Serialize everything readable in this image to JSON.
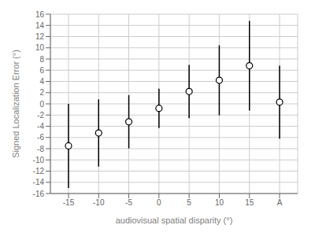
{
  "chart_data": {
    "type": "scatter",
    "xlabel": "audiovisual spatial disparity (°)",
    "ylabel": "Signed Localization Error (°)",
    "xlim": [
      -18,
      23
    ],
    "xticks": [
      -15,
      -10,
      -5,
      0,
      5,
      10,
      15,
      {
        "value": 20,
        "label": "A"
      }
    ],
    "ylim": [
      -16,
      16
    ],
    "yticks": [
      -16,
      -14,
      -12,
      -10,
      -8,
      -6,
      -4,
      -2,
      0,
      2,
      4,
      6,
      8,
      10,
      12,
      14,
      16
    ],
    "grid": true,
    "series": [
      {
        "x": [
          -15,
          -10,
          -5,
          0,
          5,
          10,
          15
        ],
        "values": [
          -7.5,
          -5.2,
          -3.2,
          -0.8,
          2.2,
          4.2,
          6.8
        ],
        "errors": [
          7.5,
          6.0,
          4.75,
          3.5,
          4.75,
          6.25,
          8.0
        ],
        "color": "#000000",
        "marker": "circle"
      },
      {
        "x": [
          20
        ],
        "values": [
          0.3
        ],
        "errors": [
          6.5
        ],
        "color": "#000000",
        "marker": "circle"
      }
    ]
  }
}
